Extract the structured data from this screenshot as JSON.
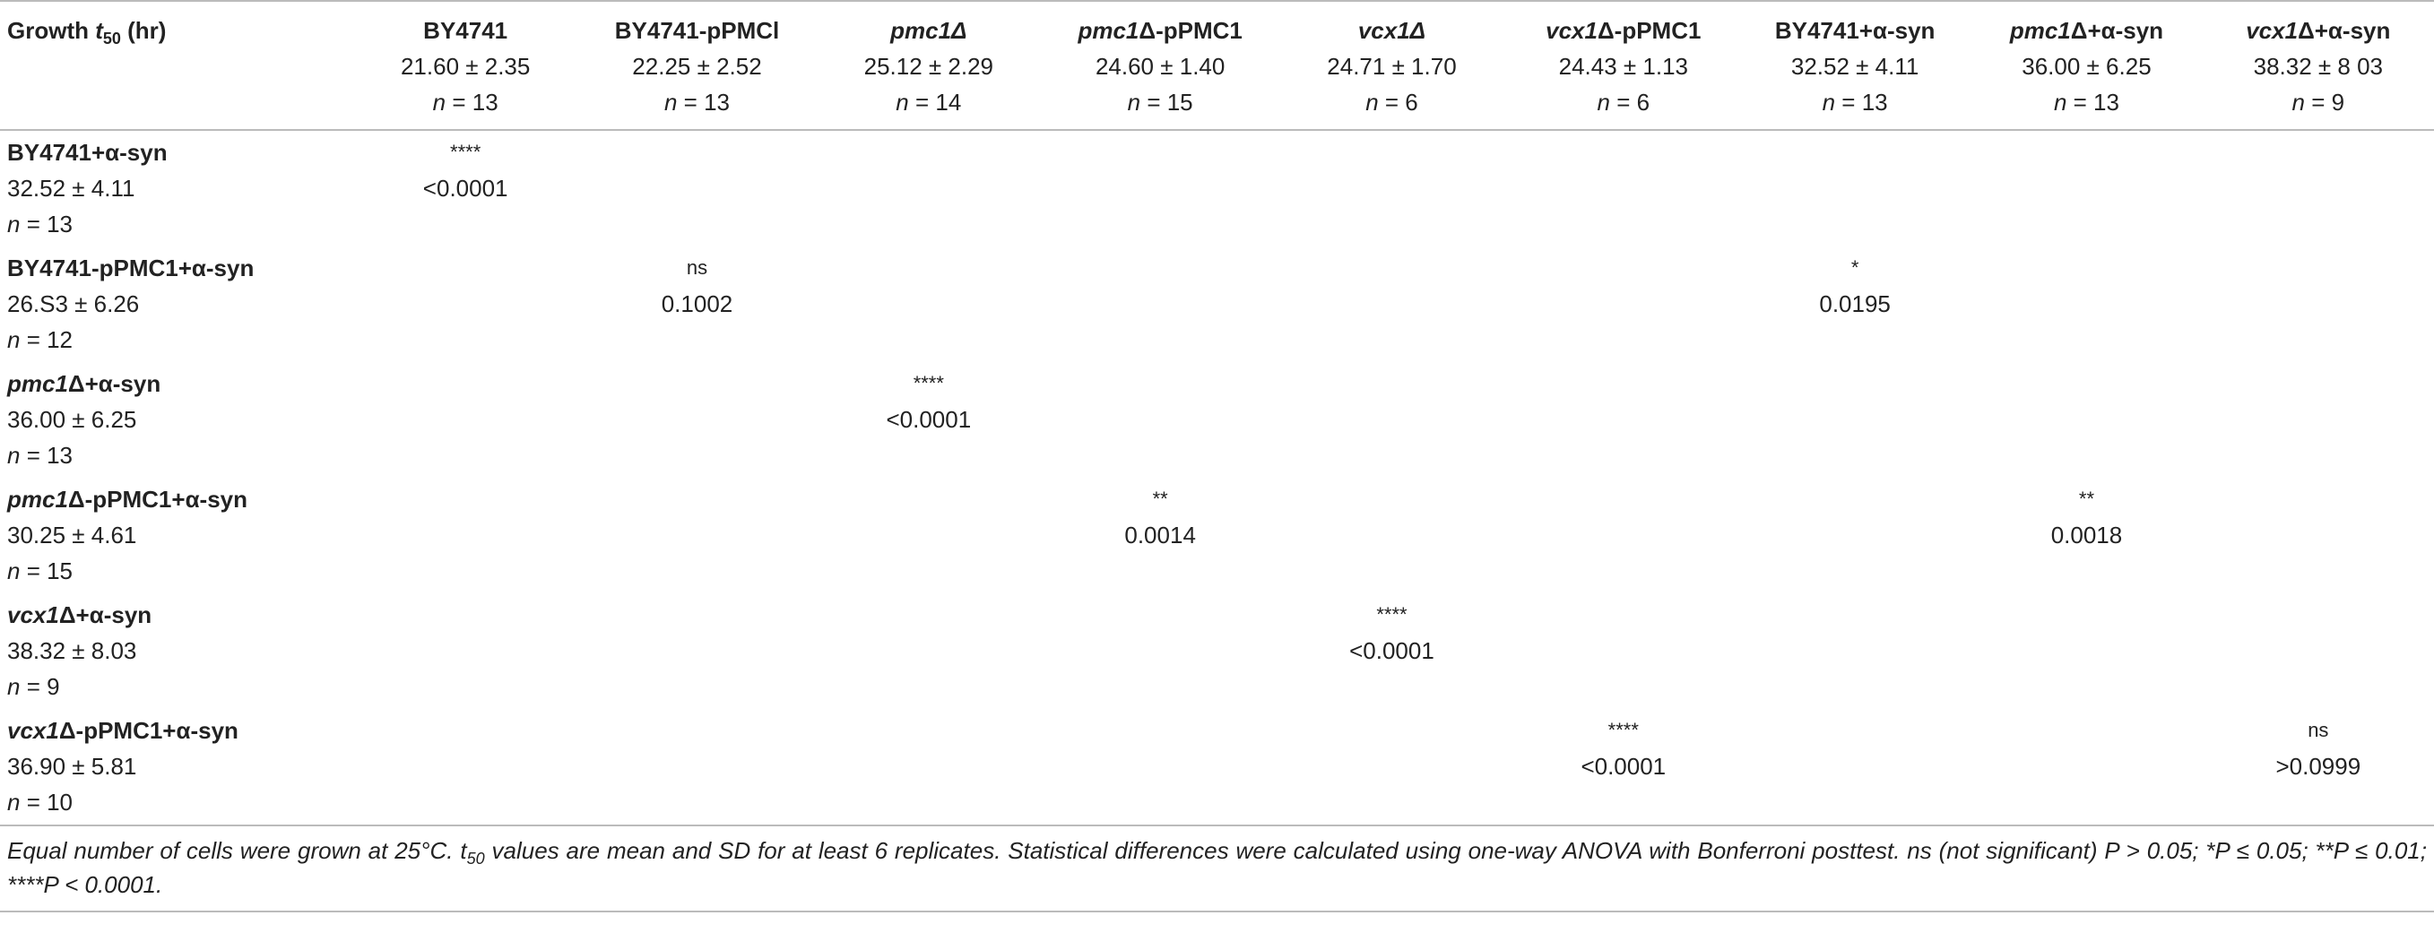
{
  "table": {
    "corner": [
      {
        "text": "Growth "
      },
      {
        "text": "t",
        "italic": true
      },
      {
        "text": "50",
        "sub": true
      },
      {
        "text": " (hr)"
      }
    ],
    "columns": [
      {
        "name": [
          {
            "text": "BY4741"
          }
        ],
        "mean_sd": "21.60 ± 2.35",
        "n": "n = 13"
      },
      {
        "name": [
          {
            "text": "BY4741-pPMCl"
          }
        ],
        "mean_sd": "22.25 ± 2.52",
        "n": "n = 13"
      },
      {
        "name": [
          {
            "text": "pmc1",
            "italic": true
          },
          {
            "text": "Δ",
            "italic": true
          }
        ],
        "mean_sd": "25.12 ± 2.29",
        "n": "n = 14"
      },
      {
        "name": [
          {
            "text": "pmc1",
            "italic": true
          },
          {
            "text": "Δ-pPMC1"
          }
        ],
        "mean_sd": "24.60 ± 1.40",
        "n": "n = 15"
      },
      {
        "name": [
          {
            "text": "vcx1",
            "italic": true
          },
          {
            "text": "Δ",
            "italic": true
          }
        ],
        "mean_sd": "24.71 ± 1.70",
        "n": "n = 6"
      },
      {
        "name": [
          {
            "text": "vcx1",
            "italic": true
          },
          {
            "text": "Δ-pPMC1"
          }
        ],
        "mean_sd": "24.43 ± 1.13",
        "n": "n = 6"
      },
      {
        "name": [
          {
            "text": "BY4741+α-syn"
          }
        ],
        "mean_sd": "32.52 ± 4.11",
        "n": "n = 13"
      },
      {
        "name": [
          {
            "text": "pmc1",
            "italic": true
          },
          {
            "text": "Δ+α-syn"
          }
        ],
        "mean_sd": "36.00 ± 6.25",
        "n": "n = 13"
      },
      {
        "name": [
          {
            "text": "vcx1",
            "italic": true
          },
          {
            "text": "Δ+α-syn"
          }
        ],
        "mean_sd": "38.32 ± 8 03",
        "n": "n = 9"
      }
    ],
    "rows": [
      {
        "name": [
          {
            "text": "BY4741+α-syn"
          }
        ],
        "mean_sd": "32.52 ± 4.11",
        "n": "n = 13",
        "cells": [
          {
            "stars": "****",
            "p": "<0.0001"
          },
          null,
          null,
          null,
          null,
          null,
          null,
          null,
          null
        ]
      },
      {
        "name": [
          {
            "text": "BY4741-pPMC1+α-syn"
          }
        ],
        "mean_sd": "26.S3 ± 6.26",
        "n": "n = 12",
        "cells": [
          null,
          {
            "stars": "ns",
            "p": "0.1002"
          },
          null,
          null,
          null,
          null,
          {
            "stars": "*",
            "p": "0.0195"
          },
          null,
          null
        ]
      },
      {
        "name": [
          {
            "text": "pmc1",
            "italic": true
          },
          {
            "text": "Δ+α-syn"
          }
        ],
        "mean_sd": "36.00 ± 6.25",
        "n": "n = 13",
        "cells": [
          null,
          null,
          {
            "stars": "****",
            "p": "<0.0001"
          },
          null,
          null,
          null,
          null,
          null,
          null
        ]
      },
      {
        "name": [
          {
            "text": "pmc1",
            "italic": true
          },
          {
            "text": "Δ-pPMC1+α-syn"
          }
        ],
        "mean_sd": "30.25 ± 4.61",
        "n": "n = 15",
        "cells": [
          null,
          null,
          null,
          {
            "stars": "**",
            "p": "0.0014"
          },
          null,
          null,
          null,
          {
            "stars": "**",
            "p": "0.0018"
          },
          null
        ]
      },
      {
        "name": [
          {
            "text": "vcx1",
            "italic": true
          },
          {
            "text": "Δ+α-syn"
          }
        ],
        "mean_sd": "38.32 ± 8.03",
        "n": "n = 9",
        "cells": [
          null,
          null,
          null,
          null,
          {
            "stars": "****",
            "p": "<0.0001"
          },
          null,
          null,
          null,
          null
        ]
      },
      {
        "name": [
          {
            "text": "vcx1",
            "italic": true
          },
          {
            "text": "Δ-pPMC1+α-syn"
          }
        ],
        "mean_sd": "36.90 ± 5.81",
        "n": "n = 10",
        "cells": [
          null,
          null,
          null,
          null,
          null,
          {
            "stars": "****",
            "p": "<0.0001"
          },
          null,
          null,
          {
            "stars": "ns",
            "p": ">0.0999"
          }
        ]
      }
    ]
  },
  "footnote": [
    {
      "text": "Equal number of cells were grown at 25°C. t"
    },
    {
      "text": "50",
      "sub": true
    },
    {
      "text": " values are mean and SD for at least 6 replicates. Statistical differences were calculated using one-way ANOVA with Bonferroni posttest. ns (not significant) P > 0.05; *P ≤ 0.05; **P ≤ 0.01; ****P < 0.0001."
    }
  ]
}
